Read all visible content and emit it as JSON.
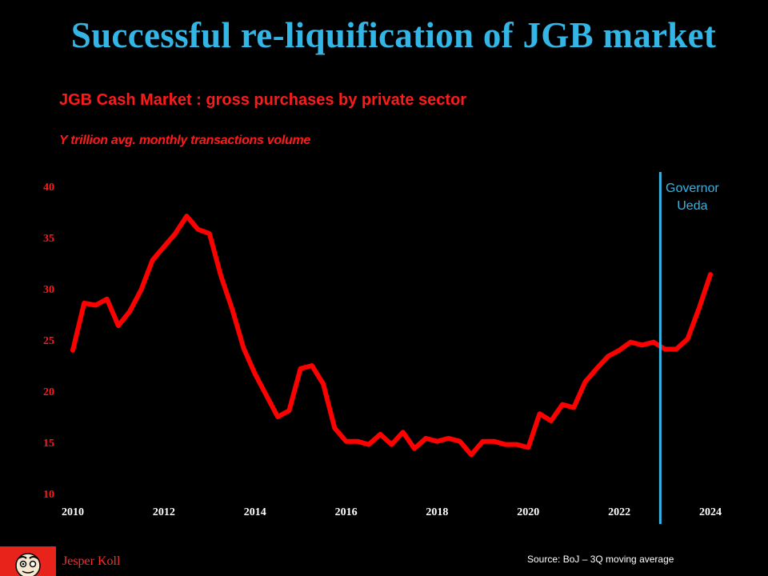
{
  "slide": {
    "title": "Successful re-liquification of JGB market",
    "source": "Source: BoJ – 3Q moving average",
    "author": "Jesper Koll"
  },
  "colors": {
    "title": "#33b5e5",
    "series": "#ff0000",
    "marker_line": "#33b5e5",
    "axis_labels_y": "#ff1a1a",
    "axis_labels_x": "#ffffff",
    "background": "#000000"
  },
  "chart_data": {
    "type": "line",
    "title": "JGB Cash Market : gross purchases by private sector",
    "subtitle": "Y trillion avg. monthly transactions volume",
    "xlabel": "",
    "ylabel": "",
    "xlim": [
      2010,
      2024
    ],
    "ylim": [
      10,
      40
    ],
    "x_ticks": [
      "2010",
      "2012",
      "2014",
      "2016",
      "2018",
      "2020",
      "2022",
      "2024"
    ],
    "y_ticks": [
      "10",
      "15",
      "20",
      "25",
      "30",
      "35",
      "40"
    ],
    "grid": false,
    "legend": "none",
    "annotation": {
      "x": 2022.9,
      "label_lines": [
        "Governor",
        "Ueda"
      ]
    },
    "series": [
      {
        "x": [
          2010.0,
          2010.25,
          2010.5,
          2010.75,
          2011.0,
          2011.25,
          2011.5,
          2011.75,
          2012.0,
          2012.25,
          2012.5,
          2012.75,
          2013.0,
          2013.25,
          2013.5,
          2013.75,
          2014.0,
          2014.25,
          2014.5,
          2014.75,
          2015.0,
          2015.25,
          2015.5,
          2015.75,
          2016.0,
          2016.25,
          2016.5,
          2016.75,
          2017.0,
          2017.25,
          2017.5,
          2017.75,
          2018.0,
          2018.25,
          2018.5,
          2018.75,
          2019.0,
          2019.25,
          2019.5,
          2019.75,
          2020.0,
          2020.25,
          2020.5,
          2020.75,
          2021.0,
          2021.25,
          2021.5,
          2021.75,
          2022.0,
          2022.25,
          2022.5,
          2022.75,
          2023.0,
          2023.25,
          2023.5,
          2023.75,
          2024.0
        ],
        "values": [
          24.0,
          28.6,
          28.4,
          29.0,
          26.4,
          27.8,
          29.9,
          32.8,
          34.1,
          35.4,
          37.1,
          35.8,
          35.4,
          31.3,
          28.0,
          24.2,
          21.7,
          19.6,
          17.5,
          18.1,
          22.2,
          22.5,
          20.7,
          16.4,
          15.1,
          15.1,
          14.8,
          15.8,
          14.8,
          16.0,
          14.4,
          15.4,
          15.1,
          15.4,
          15.1,
          13.8,
          15.1,
          15.1,
          14.8,
          14.8,
          14.5,
          17.8,
          17.1,
          18.7,
          18.4,
          20.9,
          22.2,
          23.4,
          24.0,
          24.8,
          24.5,
          24.8,
          24.1,
          24.1,
          25.1,
          28.1,
          31.4
        ]
      }
    ]
  }
}
